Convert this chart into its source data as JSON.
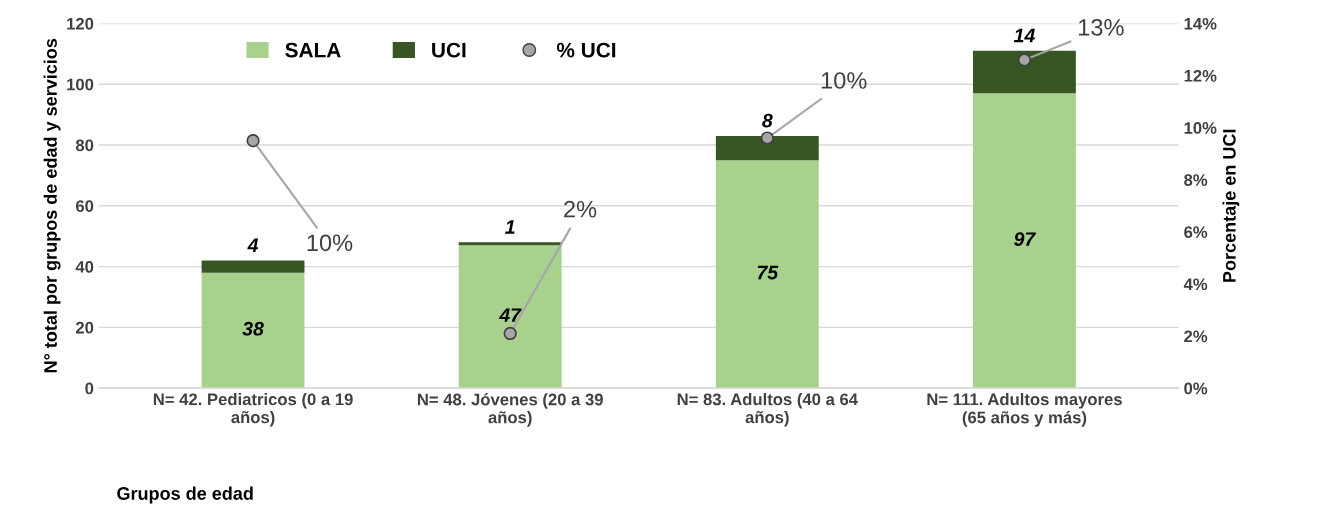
{
  "chart_data": {
    "type": "bar",
    "stacked": true,
    "xlabel": "Grupos de edad",
    "ylabel": "N° total por grupos de edad y servicios",
    "y2label": "Porcentaje en UCI",
    "categories": [
      "N= 42. Pediatricos (0 a 19 años)",
      "N= 48. Jóvenes (20 a 39 años)",
      "N= 83. Adultos (40 a 64 años)",
      "N= 111. Adultos mayores (65 años y más)"
    ],
    "series": [
      {
        "name": "SALA",
        "color": "#a9d18e",
        "values": [
          38,
          47,
          75,
          97
        ]
      },
      {
        "name": "UCI",
        "color": "#375623",
        "values": [
          4,
          1,
          8,
          14
        ]
      },
      {
        "name": "% UCI",
        "type": "scatter",
        "axis": "y2",
        "color": "#a6a6a6",
        "marker": "circle",
        "values": [
          9.5,
          2.1,
          9.6,
          12.6
        ],
        "value_labels": [
          "10%",
          "2%",
          "10%",
          "13%"
        ]
      }
    ],
    "data_labels": true,
    "ylim": [
      0,
      120
    ],
    "yticks": [
      0,
      20,
      40,
      60,
      80,
      100,
      120
    ],
    "y2lim": [
      0,
      14
    ],
    "y2ticks": [
      {
        "value": 0,
        "label": "0%"
      },
      {
        "value": 2,
        "label": "2%"
      },
      {
        "value": 4,
        "label": "4%"
      },
      {
        "value": 6,
        "label": "6%"
      },
      {
        "value": 8,
        "label": "8%"
      },
      {
        "value": 10,
        "label": "10%"
      },
      {
        "value": 12,
        "label": "12%"
      },
      {
        "value": 14,
        "label": "14%"
      }
    ],
    "grid": "y",
    "legend": "top left"
  }
}
